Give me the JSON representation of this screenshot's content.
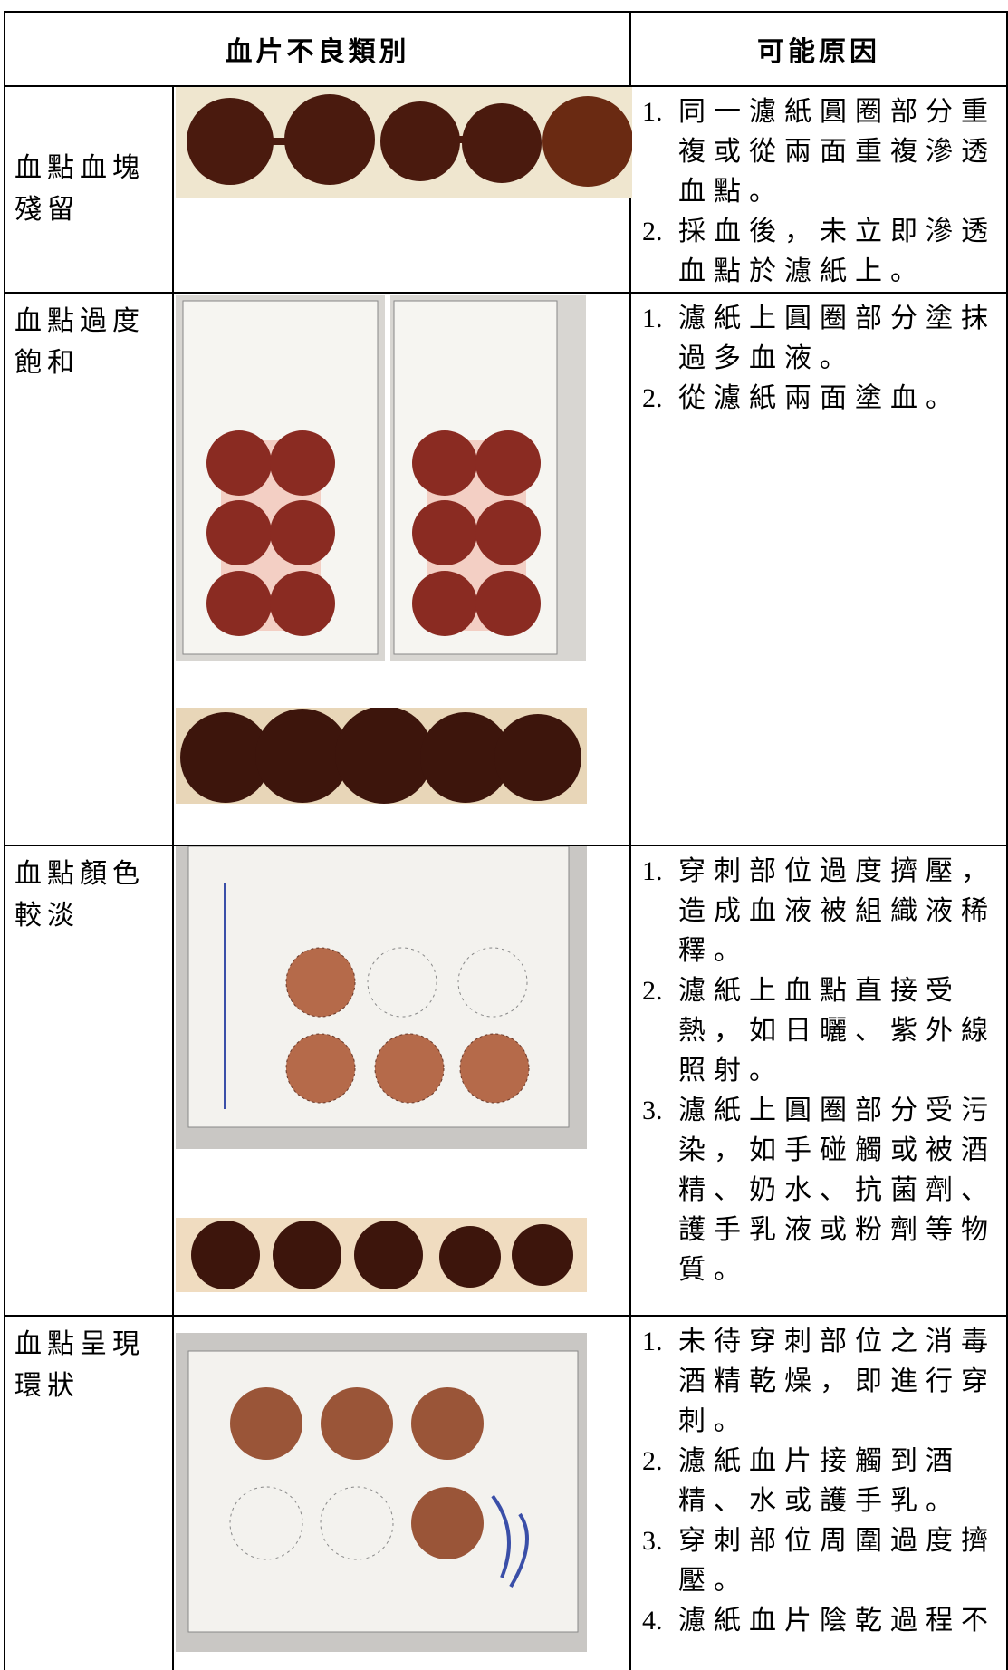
{
  "header": {
    "category": "血片不良類別",
    "cause": "可能原因"
  },
  "rows": [
    {
      "category": "血點血塊殘留",
      "causes": [
        {
          "num": "1.",
          "text": "同一濾紙圓圈部分重複或從兩面重複滲透血點。"
        },
        {
          "num": "2.",
          "text": "採血後，未立即滲透血點於濾紙上。"
        }
      ]
    },
    {
      "category": "血點過度飽和",
      "causes": [
        {
          "num": "1.",
          "text": "濾紙上圓圈部分塗抹過多血液。"
        },
        {
          "num": "2.",
          "text": "從濾紙兩面塗血。"
        }
      ]
    },
    {
      "category": "血點顏色較淡",
      "causes": [
        {
          "num": "1.",
          "text": "穿刺部位過度擠壓，造成血液被組織液稀釋。"
        },
        {
          "num": "2.",
          "text": "濾紙上血點直接受熱，如日曬、紫外線照射。"
        },
        {
          "num": "3.",
          "text": "濾紙上圓圈部分受污染，如手碰觸或被酒精、奶水、抗菌劑、護手乳液或粉劑等物質。"
        }
      ]
    },
    {
      "category": "血點呈現環狀",
      "causes": [
        {
          "num": "1.",
          "text": "未待穿刺部位之消毒酒精乾燥，即進行穿刺。"
        },
        {
          "num": "2.",
          "text": "濾紙血片接觸到酒精、水或護手乳。"
        },
        {
          "num": "3.",
          "text": "穿刺部位周圍過度擠壓。"
        },
        {
          "num": "4.",
          "text": "濾紙血片陰乾過程不"
        }
      ]
    }
  ]
}
